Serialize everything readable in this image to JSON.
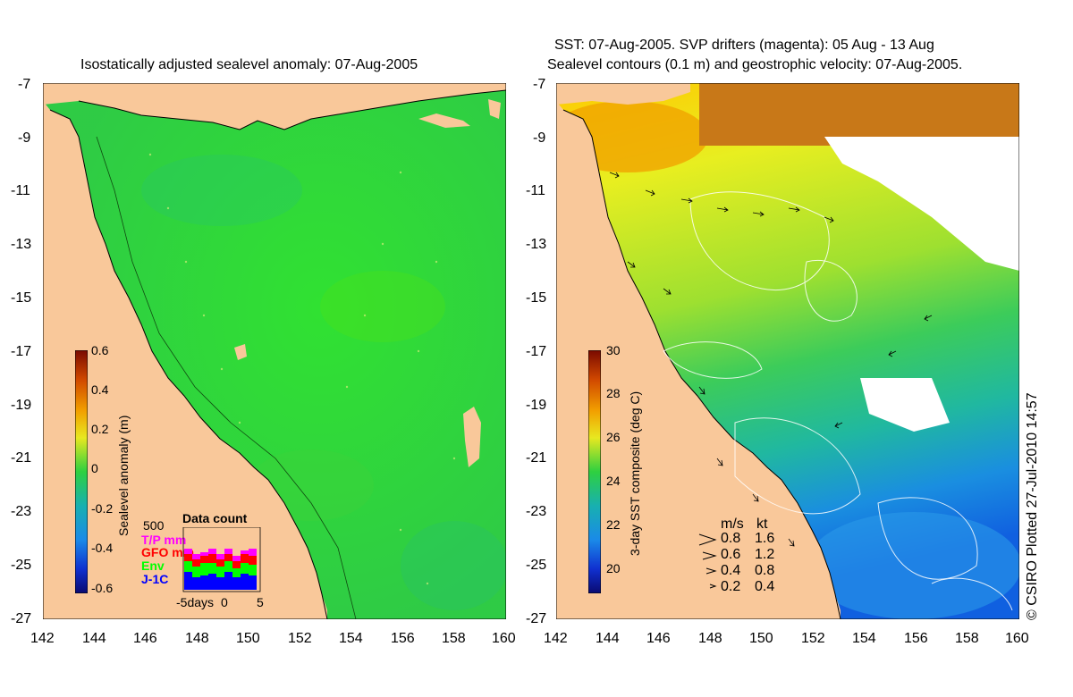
{
  "left_panel": {
    "title": "Isostatically adjusted sealevel anomaly: 07-Aug-2005",
    "colorbar": {
      "label": "Sealevel anomaly (m)",
      "ticks": [
        "0.6",
        "0.4",
        "0.2",
        "0",
        "-0.2",
        "-0.4",
        "-0.6"
      ]
    },
    "data_count": {
      "title": "Data count",
      "max_label": "500",
      "legend": [
        {
          "label": "T/P mm",
          "color": "#ff00ff"
        },
        {
          "label": "GFO mm",
          "color": "#ff0000"
        },
        {
          "label": "Env",
          "color": "#00ff00"
        },
        {
          "label": "J-1C",
          "color": "#0000ff"
        }
      ],
      "x_labels": [
        "-5days",
        "0",
        "5"
      ]
    }
  },
  "right_panel": {
    "title_line1": "SST: 07-Aug-2005. SVP drifters (magenta): 05 Aug - 13 Aug",
    "title_line2": "Sealevel contours (0.1 m) and geostrophic velocity: 07-Aug-2005.",
    "colorbar": {
      "label": "3-day SST composite (deg C)",
      "ticks": [
        "30",
        "28",
        "26",
        "24",
        "22",
        "20"
      ]
    },
    "velocity_legend": {
      "header_ms": "m/s",
      "header_kt": "kt",
      "rows": [
        {
          "ms": "0.8",
          "kt": "1.6"
        },
        {
          "ms": "0.6",
          "kt": "1.2"
        },
        {
          "ms": "0.4",
          "kt": "0.8"
        },
        {
          "ms": "0.2",
          "kt": "0.4"
        }
      ]
    }
  },
  "axes": {
    "y_ticks": [
      "-7",
      "-9",
      "-11",
      "-13",
      "-15",
      "-17",
      "-19",
      "-21",
      "-23",
      "-25",
      "-27"
    ],
    "x_ticks": [
      "142",
      "144",
      "146",
      "148",
      "150",
      "152",
      "154",
      "156",
      "158",
      "160"
    ]
  },
  "credit": "© CSIRO Plotted 27-Jul-2010 14:57",
  "colors": {
    "land": "#f9c89a",
    "ocean_anomaly": "#2fd02f",
    "sst_warm": "#ffd700",
    "sst_cool": "#0a3fd8"
  }
}
